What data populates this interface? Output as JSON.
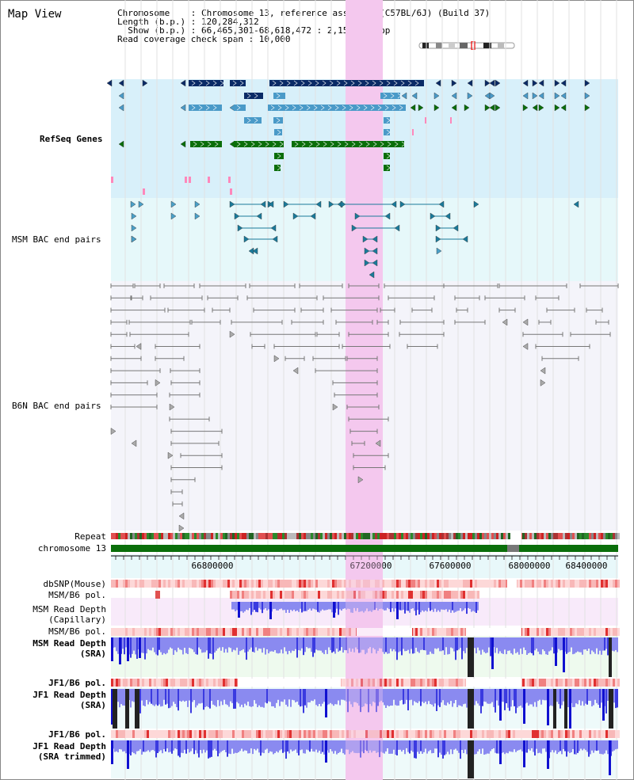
{
  "header": {
    "title": "Map View",
    "chromosome_line": "Chromosome    : Chromosome 13, reference assembly (C57BL/6J) (Build 37)",
    "length_line": "Length (b.p.) : 120,284,312",
    "show_line": "  Show (b.p.) : 66,465,301-68,618,472 : 2,153,172 bp",
    "coverage_line": "Read coverage check span : 10,000"
  },
  "tracks": {
    "refseq": "RefSeq Genes",
    "msm_bac": "MSM BAC end pairs",
    "b6n_bac": "B6N BAC end pairs",
    "repeat": "Repeat",
    "chromosome": "chromosome 13",
    "dbsnp": "dbSNP(Mouse)",
    "msm_b6_pol_1": "MSM/B6 pol.",
    "msm_depth_cap_1": "MSM Read Depth",
    "msm_depth_cap_2": "(Capillary)",
    "msm_b6_pol_2": "MSM/B6 pol.",
    "msm_depth_sra_1": "MSM Read Depth",
    "msm_depth_sra_2": "(SRA)",
    "jf1_b6_pol_1": "JF1/B6 pol.",
    "jf1_depth_sra_1": "JF1 Read Depth",
    "jf1_depth_sra_2": "(SRA)",
    "jf1_b6_pol_2": "JF1/B6 pol.",
    "jf1_depth_trim_1": "JF1 Read Depth",
    "jf1_depth_trim_2": "(SRA trimmed)"
  },
  "axis": {
    "ticks": [
      "66800000",
      "67200000",
      "67600000",
      "68000000",
      "68400000"
    ]
  },
  "colors": {
    "highlight": "#f4c8ee",
    "refseq_bg": "#d8f0fa",
    "msm_bg": "#e6f8fa",
    "b6n_bg": "#f4f4fa",
    "dark_blue": "#0a2a66",
    "light_blue": "#4a9ac8",
    "green": "#0a6e0a",
    "teal": "#1a7a9a",
    "gray": "#777777",
    "label_blue": "#00008b",
    "label_teal": "#1a6a8a",
    "label_orange": "#e08a00"
  }
}
